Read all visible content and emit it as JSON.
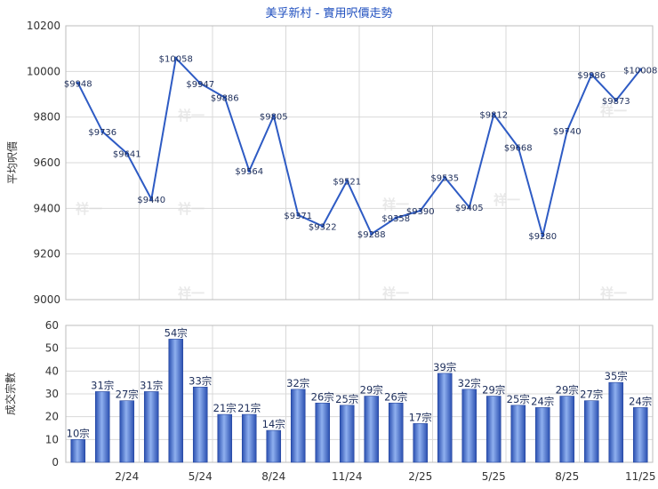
{
  "chart_data": [
    {
      "type": "line",
      "title": "美孚新村 - 實用呎價走勢",
      "ylabel": "平均呎價",
      "ylim": [
        9000,
        10200
      ],
      "yticks": [
        9000,
        9200,
        9400,
        9600,
        9800,
        10000,
        10200
      ],
      "grid": true,
      "series": [
        {
          "values": [
            9948,
            9736,
            9641,
            9440,
            10058,
            9947,
            9886,
            9564,
            9805,
            9371,
            9322,
            9521,
            9288,
            9358,
            9390,
            9535,
            9405,
            9812,
            9668,
            9280,
            9740,
            9986,
            9873,
            10008
          ],
          "labels": [
            "$9948",
            "$9736",
            "$9641",
            "$9440",
            "$10058",
            "$9947",
            "$9886",
            "$9564",
            "$9805",
            "$9371",
            "$9322",
            "$9521",
            "$9288",
            "$9358",
            "$9390",
            "$9535",
            "$9405",
            "$9812",
            "$9668",
            "$9280",
            "$9740",
            "$9986",
            "$9873",
            "$10008"
          ]
        }
      ]
    },
    {
      "type": "bar",
      "ylabel": "成交宗數",
      "ylim": [
        0,
        60
      ],
      "yticks": [
        0,
        10,
        20,
        30,
        40,
        50,
        60
      ],
      "grid": true,
      "categories": [
        "",
        "",
        "2/24",
        "",
        "",
        "5/24",
        "",
        "",
        "8/24",
        "",
        "",
        "11/24",
        "",
        "",
        "2/25",
        "",
        "",
        "5/25",
        "",
        "",
        "8/25",
        "",
        "",
        "11/25"
      ],
      "values": [
        10,
        31,
        27,
        31,
        54,
        33,
        21,
        21,
        14,
        32,
        26,
        25,
        29,
        26,
        17,
        39,
        32,
        29,
        25,
        24,
        29,
        27,
        35,
        24
      ],
      "labels": [
        "10宗",
        "31宗",
        "27宗",
        "31宗",
        "54宗",
        "33宗",
        "21宗",
        "21宗",
        "14宗",
        "32宗",
        "26宗",
        "25宗",
        "29宗",
        "26宗",
        "17宗",
        "39宗",
        "32宗",
        "29宗",
        "25宗",
        "24宗",
        "29宗",
        "27宗",
        "35宗",
        "24宗"
      ]
    }
  ],
  "watermark": "祥一",
  "colors": {
    "line": "#2e5bc4",
    "bar_dark": "#2a4fb0",
    "bar_light": "#7fa3e8",
    "title": "#1f4fbf"
  }
}
